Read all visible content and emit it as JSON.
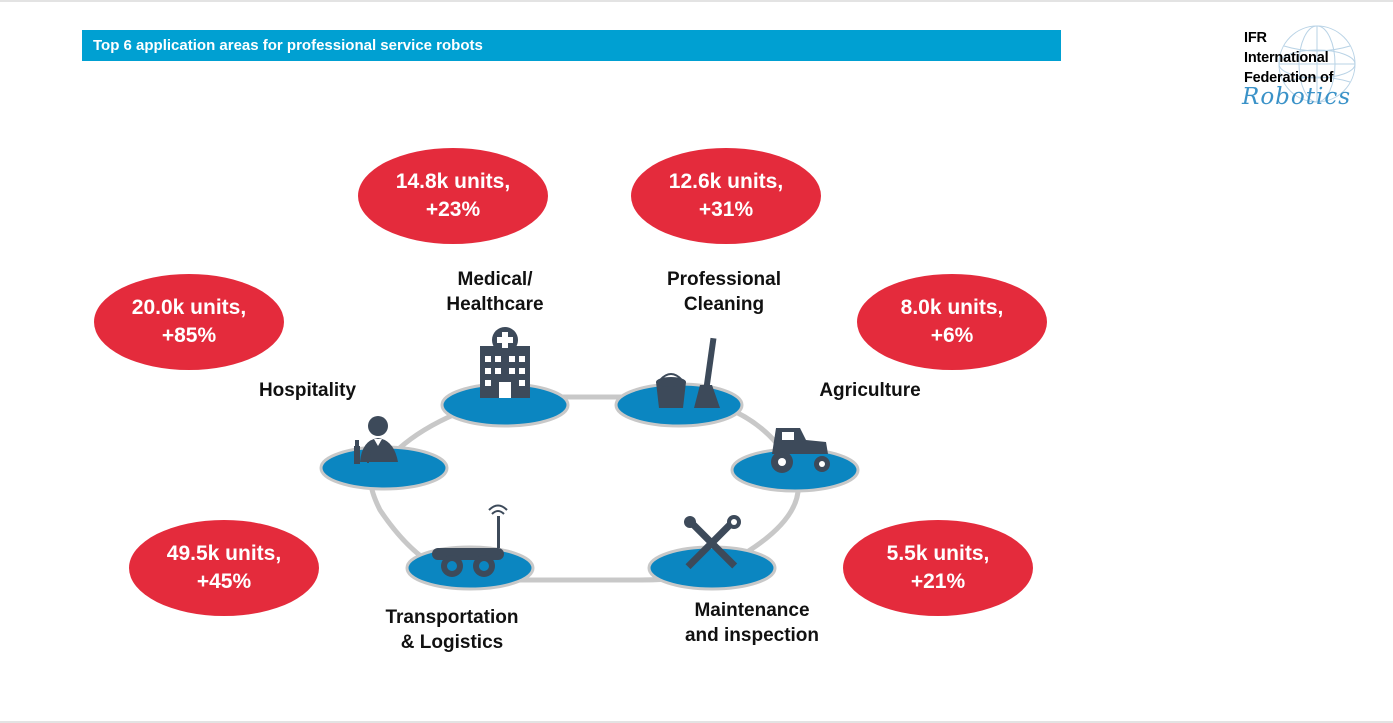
{
  "header": {
    "title": "Top 6 application areas for professional service robots"
  },
  "logo": {
    "line1": "IFR",
    "line2": "International",
    "line3": "Federation of",
    "line4": "Robotics"
  },
  "colors": {
    "accent": "#00a0d2",
    "ellipse": "#e42b3c",
    "platform": "#0b86c1",
    "icon": "#3d4a5a"
  },
  "areas": [
    {
      "id": "medical",
      "name_line1": "Medical/",
      "name_line2": "Healthcare",
      "units": "14.8k units,",
      "growth": "+23%",
      "icon": "hospital-icon"
    },
    {
      "id": "cleaning",
      "name_line1": "Professional",
      "name_line2": "Cleaning",
      "units": "12.6k units,",
      "growth": "+31%",
      "icon": "cleaning-icon"
    },
    {
      "id": "hospitality",
      "name_line1": "Hospitality",
      "name_line2": "",
      "units": "20.0k units,",
      "growth": "+85%",
      "icon": "waiter-icon"
    },
    {
      "id": "agriculture",
      "name_line1": "Agriculture",
      "name_line2": "",
      "units": "8.0k units,",
      "growth": "+6%",
      "icon": "tractor-icon"
    },
    {
      "id": "transport",
      "name_line1": "Transportation",
      "name_line2": "& Logistics",
      "units": "49.5k units,",
      "growth": "+45%",
      "icon": "delivery-robot-icon"
    },
    {
      "id": "maintenance",
      "name_line1": "Maintenance",
      "name_line2": "and inspection",
      "units": "5.5k units,",
      "growth": "+21%",
      "icon": "tools-icon"
    }
  ]
}
